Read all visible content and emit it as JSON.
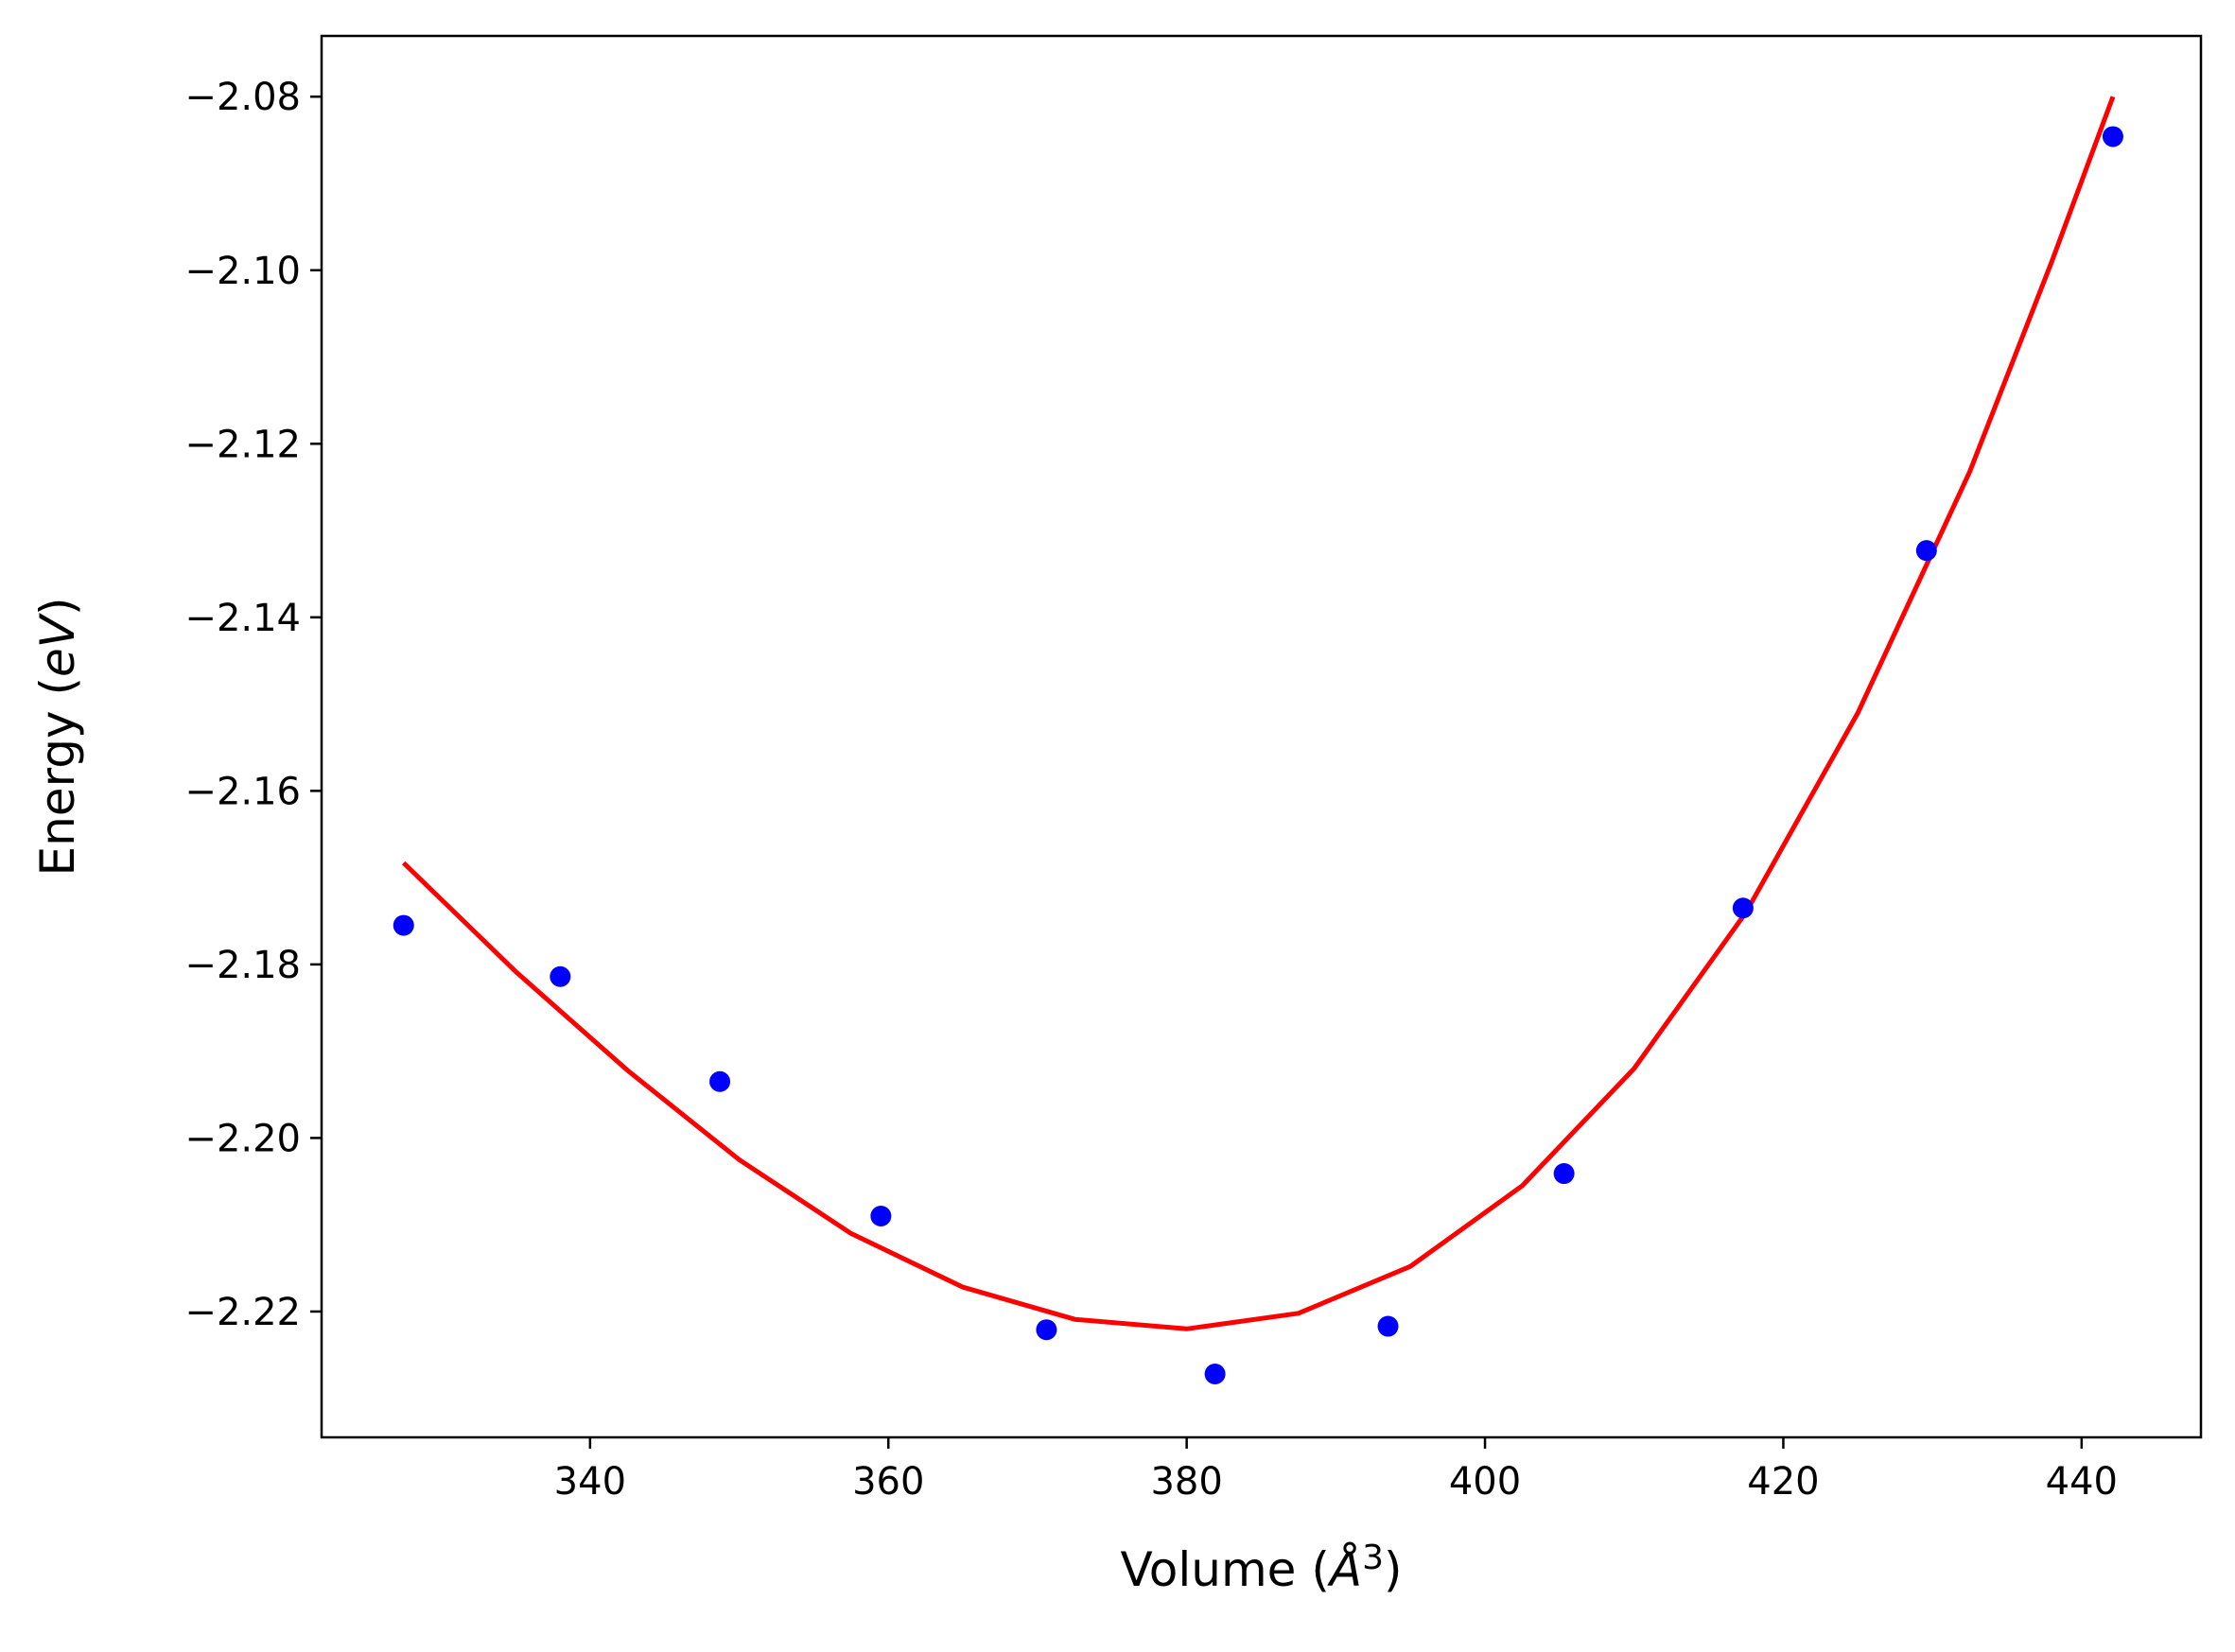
{
  "chart_data": {
    "type": "scatter",
    "title": "",
    "xlabel": "Volume",
    "xlabel_unit": "Å",
    "xlabel_unit_exponent": "3",
    "ylabel": "Energy",
    "ylabel_unit": "eV",
    "xlim": [
      322,
      448
    ],
    "ylim": [
      -2.2345,
      -2.073
    ],
    "xticks": [
      340,
      360,
      380,
      400,
      420,
      440
    ],
    "yticks": [
      -2.08,
      -2.1,
      -2.12,
      -2.14,
      -2.16,
      -2.18,
      -2.2,
      -2.22
    ],
    "xtick_labels": [
      "340",
      "360",
      "380",
      "400",
      "420",
      "440"
    ],
    "ytick_labels": [
      "−2.08",
      "−2.10",
      "−2.12",
      "−2.14",
      "−2.16",
      "−2.18",
      "−2.20",
      "−2.22"
    ],
    "grid": false,
    "series": [
      {
        "type": "scatter",
        "color": "#0000ff",
        "points": [
          {
            "x": 327.5,
            "y": -2.1755
          },
          {
            "x": 338.0,
            "y": -2.1814
          },
          {
            "x": 348.7,
            "y": -2.1935
          },
          {
            "x": 359.5,
            "y": -2.209
          },
          {
            "x": 370.6,
            "y": -2.2221
          },
          {
            "x": 381.9,
            "y": -2.2272
          },
          {
            "x": 393.5,
            "y": -2.2217
          },
          {
            "x": 405.3,
            "y": -2.2041
          },
          {
            "x": 417.3,
            "y": -2.1735
          },
          {
            "x": 429.6,
            "y": -2.1323
          },
          {
            "x": 442.1,
            "y": -2.0846
          }
        ]
      },
      {
        "type": "line",
        "color": "#ff0000",
        "points": [
          {
            "x": 327.5,
            "y": -2.1683
          },
          {
            "x": 335.0,
            "y": -2.1808
          },
          {
            "x": 342.5,
            "y": -2.1922
          },
          {
            "x": 350.0,
            "y": -2.2025
          },
          {
            "x": 357.5,
            "y": -2.211
          },
          {
            "x": 365.0,
            "y": -2.2172
          },
          {
            "x": 372.5,
            "y": -2.2209
          },
          {
            "x": 380.0,
            "y": -2.222
          },
          {
            "x": 387.5,
            "y": -2.2202
          },
          {
            "x": 395.0,
            "y": -2.2148
          },
          {
            "x": 402.5,
            "y": -2.2055
          },
          {
            "x": 410.0,
            "y": -2.192
          },
          {
            "x": 417.5,
            "y": -2.174
          },
          {
            "x": 425.0,
            "y": -2.151
          },
          {
            "x": 432.5,
            "y": -2.1232
          },
          {
            "x": 438.0,
            "y": -2.099
          },
          {
            "x": 442.1,
            "y": -2.08
          }
        ]
      }
    ]
  }
}
